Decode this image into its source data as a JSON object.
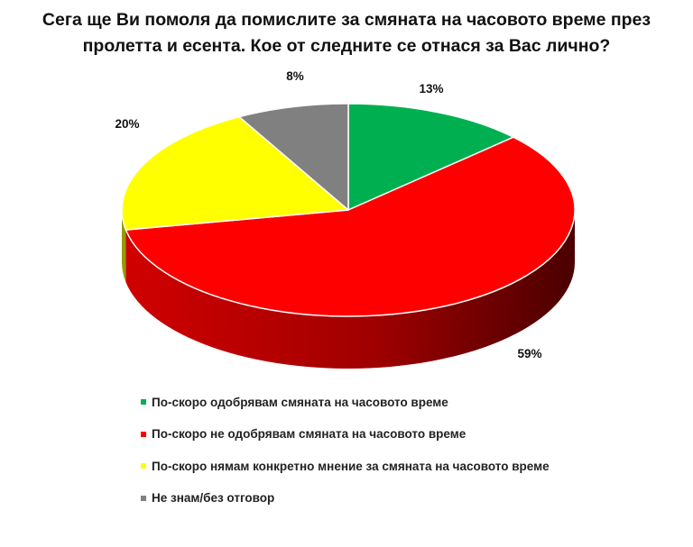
{
  "chart_data": {
    "type": "pie",
    "title": "Сега ще Ви помоля да помислите за смяната на часовото време през пролетта и есента. Кое от следните се отнася за Вас лично?",
    "title_lines": [
      "Сега ще Ви помоля да помислите за смяната на часовото време през",
      "пролетта и есента. Кое от следните се отнася за Вас лично?"
    ],
    "style": "3d",
    "legend_position": "bottom-left",
    "slices": [
      {
        "label": "По-скоро одобрявам смяната на часовото време",
        "value": 13,
        "display": "13%",
        "color": "#00b050"
      },
      {
        "label": "По-скоро не одобрявам смяната на часовото време",
        "value": 59,
        "display": "59%",
        "color": "#ff0000"
      },
      {
        "label": "По-скоро нямам конкретно мнение за смяната на часовото време",
        "value": 20,
        "display": "20%",
        "color": "#ffff00"
      },
      {
        "label": "Не знам/без отговор",
        "value": 8,
        "display": "8%",
        "color": "#808080"
      }
    ]
  }
}
